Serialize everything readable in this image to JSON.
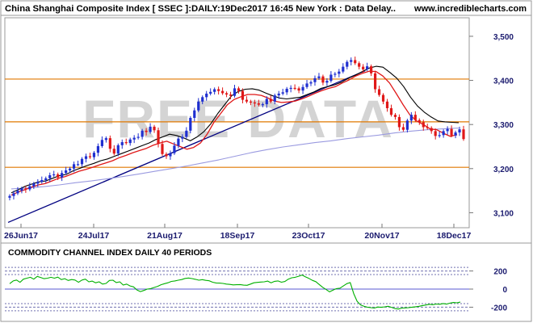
{
  "header": {
    "title": "China Shanghai Composite Index [ SSEC ]:DAILY:19Dec2017 16:45 New York : Data Delay..",
    "site": "www.incrediblecharts.com"
  },
  "watermark": "FREE DATA",
  "colors": {
    "background": "#ffffff",
    "plot_bg": "#fbfbfb",
    "frame": "#9a9a9a",
    "up_candle": "#1f2fd0",
    "down_candle": "#e01818",
    "fast_ma": "#000000",
    "slow_ma": "#e01818",
    "long_ma": "#9a9ae0",
    "trendline": "#000080",
    "support": "#e07800",
    "cci_line": "#00b000",
    "cci_zero": "#5a5ad0",
    "cci_band": "#7070b0",
    "watermark": "#d4d4d4"
  },
  "chart_data": [
    {
      "type": "candlestick",
      "title": "China Shanghai Composite Index [ SSEC ]:DAILY:19Dec2017 16:45 New York : Data Delay..",
      "xlabel": "",
      "ylabel": "",
      "x_ticks": [
        "26Jun17",
        "24Jul17",
        "21Aug17",
        "18Sep17",
        "23Oct17",
        "20Nov17",
        "18Dec17"
      ],
      "y_ticks": [
        "3,500",
        "3,400",
        "3,300",
        "3,200",
        "3,100"
      ],
      "y_tick_values": [
        3500,
        3400,
        3300,
        3200,
        3100
      ],
      "ylim": [
        3066,
        3542
      ],
      "grid": false,
      "horizontal_lines": [
        3403,
        3306,
        3203
      ],
      "trendline": {
        "from": {
          "date": "2017-06-19",
          "value": 3078
        },
        "to": {
          "date": "2017-11-09",
          "value": 3422
        }
      },
      "series": [
        {
          "name": "",
          "kind": "candles",
          "values": [
            3138,
            3144,
            3150,
            3155,
            3153,
            3160,
            3166,
            3170,
            3174,
            3178,
            3185,
            3187,
            3180,
            3190,
            3196,
            3200,
            3210,
            3210,
            3222,
            3228,
            3226,
            3236,
            3251,
            3265,
            3269,
            3245,
            3234,
            3253,
            3260,
            3258,
            3266,
            3270,
            3272,
            3286,
            3283,
            3295,
            3287,
            3256,
            3233,
            3228,
            3235,
            3252,
            3268,
            3272,
            3286,
            3315,
            3332,
            3352,
            3362,
            3370,
            3374,
            3380,
            3376,
            3371,
            3368,
            3365,
            3382,
            3376,
            3356,
            3352,
            3350,
            3348,
            3345,
            3346,
            3358,
            3352,
            3366,
            3370,
            3373,
            3381,
            3383,
            3382,
            3377,
            3385,
            3393,
            3396,
            3405,
            3409,
            3395,
            3399,
            3413,
            3415,
            3420,
            3431,
            3442,
            3446,
            3439,
            3431,
            3425,
            3432,
            3416,
            3380,
            3367,
            3352,
            3337,
            3322,
            3317,
            3294,
            3288,
            3309,
            3322,
            3310,
            3305,
            3294,
            3292,
            3285,
            3274,
            3276,
            3285,
            3290,
            3275,
            3282,
            3289,
            3267
          ]
        },
        {
          "name": "",
          "kind": "ma_fast",
          "values": [
            3145,
            3152,
            3160,
            3165,
            3170,
            3172,
            3178,
            3184,
            3187,
            3195,
            3201,
            3207,
            3212,
            3218,
            3222,
            3228,
            3234,
            3240,
            3246,
            3252,
            3258,
            3266,
            3272,
            3278,
            3275,
            3270,
            3263,
            3272,
            3284,
            3302,
            3325,
            3345,
            3365,
            3375,
            3380,
            3381,
            3378,
            3371,
            3365,
            3360,
            3358,
            3360,
            3362,
            3368,
            3374,
            3382,
            3386,
            3390,
            3396,
            3405,
            3412,
            3420,
            3428,
            3432,
            3430,
            3418,
            3405,
            3386,
            3362,
            3342,
            3328,
            3317,
            3308,
            3306,
            3305,
            3304
          ]
        },
        {
          "name": "",
          "kind": "ma_slow",
          "values": [
            3140,
            3147,
            3152,
            3158,
            3163,
            3166,
            3172,
            3178,
            3182,
            3188,
            3194,
            3198,
            3203,
            3208,
            3213,
            3218,
            3225,
            3230,
            3236,
            3241,
            3246,
            3253,
            3258,
            3262,
            3256,
            3250,
            3244,
            3248,
            3258,
            3278,
            3305,
            3325,
            3345,
            3357,
            3363,
            3368,
            3368,
            3366,
            3360,
            3353,
            3350,
            3351,
            3353,
            3358,
            3364,
            3371,
            3377,
            3382,
            3386,
            3394,
            3401,
            3410,
            3416,
            3421,
            3420,
            3410,
            3394,
            3370,
            3345,
            3322,
            3308,
            3300,
            3290,
            3288,
            3280,
            3273,
            3277
          ]
        },
        {
          "name": "",
          "kind": "ma_long",
          "values": [
            3154,
            3156,
            3159,
            3163,
            3168,
            3172,
            3177,
            3182,
            3188,
            3194,
            3200,
            3206,
            3213,
            3220,
            3228,
            3236,
            3243,
            3249,
            3254,
            3259,
            3263,
            3268,
            3272,
            3276,
            3281,
            3285,
            3288,
            3290,
            3292
          ]
        }
      ]
    },
    {
      "type": "line",
      "title": "COMMODITY CHANNEL INDEX DAILY 40 PERIODS",
      "xlabel": "",
      "ylabel": "",
      "y_ticks": [
        "200",
        "0",
        "-200"
      ],
      "y_tick_values": [
        200,
        0,
        -200
      ],
      "ylim": [
        -330,
        330
      ],
      "grid": false,
      "reference_lines": [
        -240,
        -200,
        -160,
        0,
        160,
        200,
        240
      ],
      "series": [
        {
          "name": "",
          "values": [
            60,
            90,
            100,
            75,
            110,
            120,
            130,
            110,
            140,
            128,
            115,
            120,
            130,
            120,
            132,
            105,
            115,
            95,
            105,
            100,
            75,
            100,
            110,
            80,
            88,
            70,
            80,
            55,
            62,
            95,
            98,
            72,
            80,
            45,
            55,
            35,
            25,
            -10,
            -28,
            -15,
            0,
            5,
            18,
            30,
            48,
            60,
            70,
            85,
            90,
            98,
            105,
            118,
            122,
            116,
            108,
            98,
            104,
            96,
            92,
            76,
            68,
            66,
            62,
            55,
            52,
            46,
            48,
            50,
            44,
            42,
            55,
            70,
            74,
            78,
            80,
            88,
            70,
            86,
            90,
            76,
            84,
            110,
            125,
            130,
            142,
            155,
            135,
            118,
            96,
            82,
            50,
            20,
            -5,
            -30,
            -12,
            5,
            10,
            35,
            60,
            72,
            -50,
            -135,
            -175,
            -190,
            -200,
            -205,
            -210,
            -198,
            -202,
            -196,
            -190,
            -202,
            -215,
            -220,
            -210,
            -208,
            -205,
            -200,
            -195,
            -190,
            -182,
            -176,
            -168,
            -172,
            -165,
            -168,
            -160,
            -166,
            -155,
            -148,
            -152,
            -144
          ]
        }
      ]
    }
  ]
}
